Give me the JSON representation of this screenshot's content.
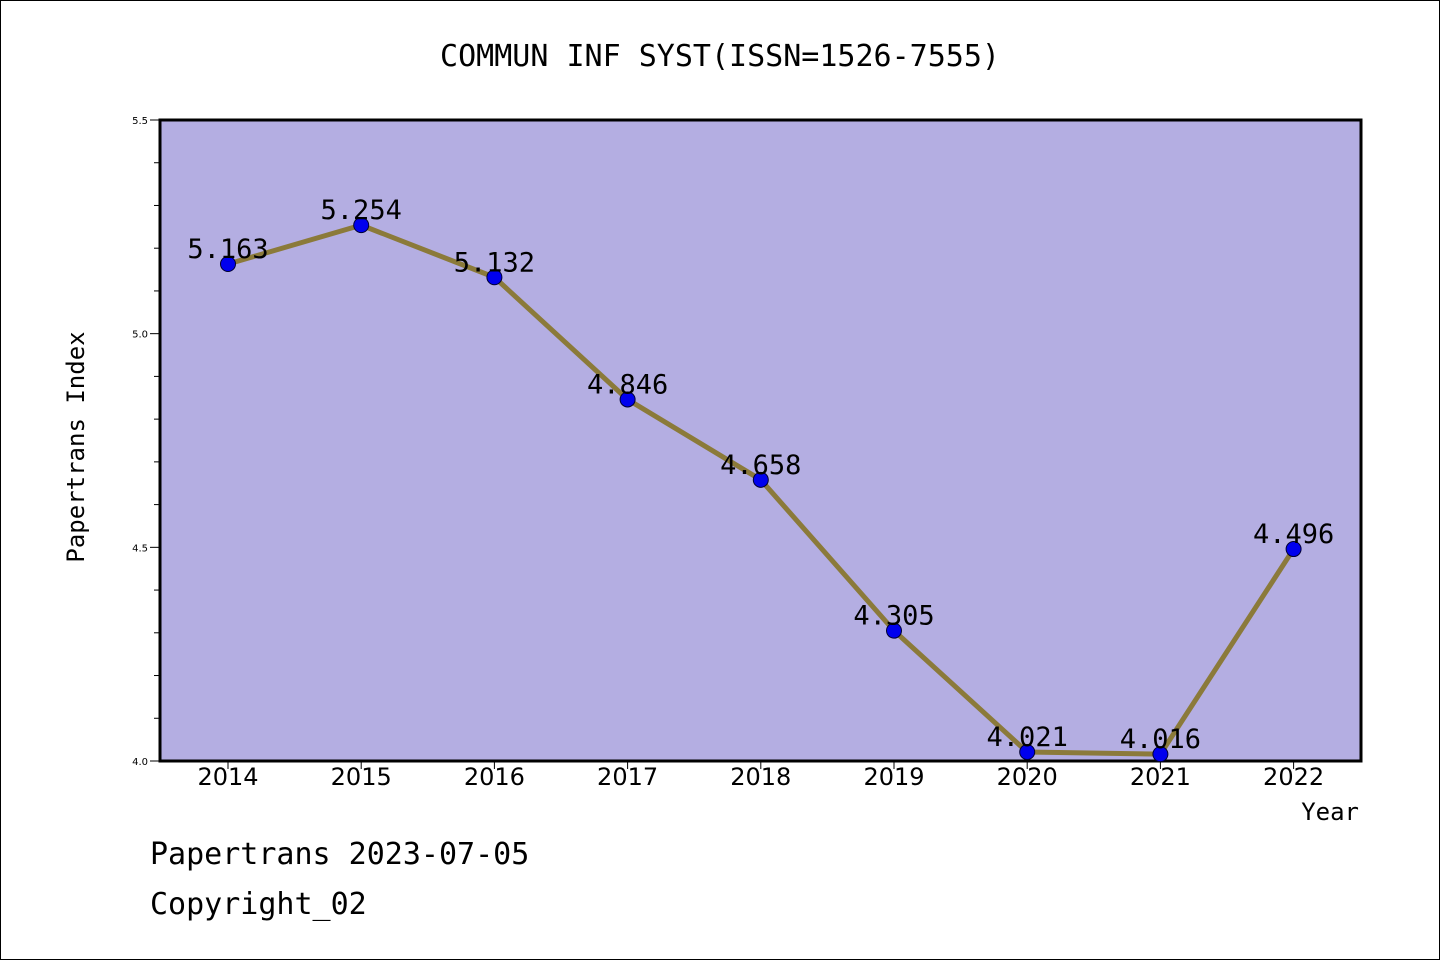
{
  "chart_data": {
    "type": "line",
    "title": "COMMUN INF SYST(ISSN=1526-7555)",
    "xlabel": "Year",
    "ylabel": "Papertrans Index",
    "x": [
      "2014",
      "2015",
      "2016",
      "2017",
      "2018",
      "2019",
      "2020",
      "2021",
      "2022"
    ],
    "values": [
      5.163,
      5.254,
      5.132,
      4.846,
      4.658,
      4.305,
      4.021,
      4.016,
      4.496
    ],
    "data_labels": [
      "5.163",
      "5.254",
      "5.132",
      "4.846",
      "4.658",
      "4.305",
      "4.021",
      "4.016",
      "4.496"
    ],
    "ylim": [
      4.0,
      5.5
    ],
    "yticks": [
      "4.0",
      "4.5",
      "5.0",
      "5.5"
    ],
    "grid": false,
    "colors": {
      "plot_background": "#b4aee2",
      "line": "#8b7a3a",
      "marker": "#0000ee"
    }
  },
  "footer": {
    "line1": "Papertrans 2023-07-05",
    "line2": "Copyright_02"
  }
}
